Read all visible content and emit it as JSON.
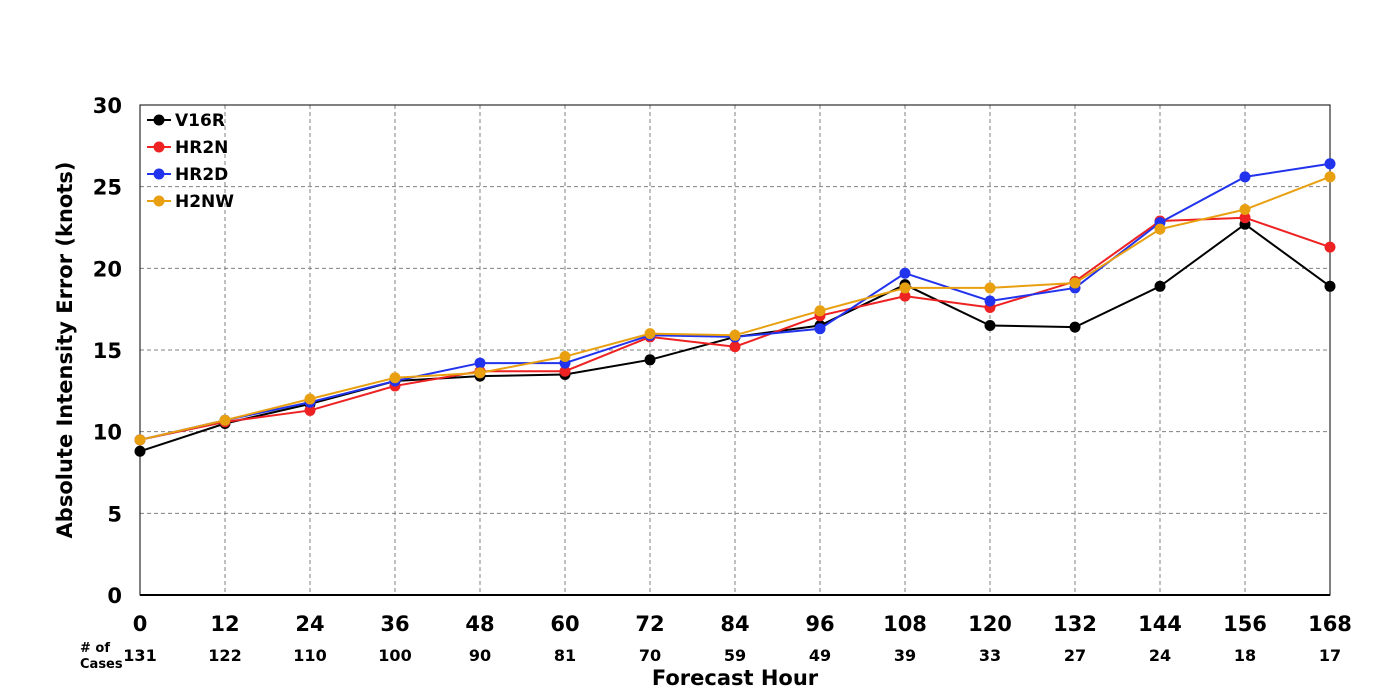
{
  "chart_data": {
    "type": "line",
    "title": "",
    "xlabel": "Forecast Hour",
    "ylabel": "Absolute Intensity Error (knots)",
    "x": [
      0,
      12,
      24,
      36,
      48,
      60,
      72,
      84,
      96,
      108,
      120,
      132,
      144,
      156,
      168
    ],
    "xlim": [
      0,
      168
    ],
    "ylim": [
      0,
      30
    ],
    "yticks": [
      0,
      5,
      10,
      15,
      20,
      25,
      30
    ],
    "grid": true,
    "legend_position": "top-left",
    "cases_label_line1": "# of",
    "cases_label_line2": "Cases",
    "cases": [
      131,
      122,
      110,
      100,
      90,
      81,
      70,
      59,
      49,
      39,
      33,
      27,
      24,
      18,
      17
    ],
    "series": [
      {
        "name": "V16R",
        "color": "#000000",
        "values": [
          8.8,
          10.5,
          11.7,
          13.1,
          13.4,
          13.5,
          14.4,
          15.8,
          16.5,
          19.0,
          16.5,
          16.4,
          18.9,
          22.7,
          18.9
        ]
      },
      {
        "name": "HR2N",
        "color": "#ee2222",
        "values": [
          9.5,
          10.6,
          11.3,
          12.8,
          13.7,
          13.7,
          15.8,
          15.2,
          17.1,
          18.3,
          17.6,
          19.2,
          22.9,
          23.1,
          21.3
        ]
      },
      {
        "name": "HR2D",
        "color": "#2233ee",
        "values": [
          9.5,
          10.7,
          11.8,
          13.1,
          14.2,
          14.2,
          15.9,
          15.8,
          16.3,
          19.7,
          18.0,
          18.8,
          22.8,
          25.6,
          26.4
        ]
      },
      {
        "name": "H2NW",
        "color": "#e8a010",
        "values": [
          9.5,
          10.7,
          12.0,
          13.3,
          13.6,
          14.6,
          16.0,
          15.9,
          17.4,
          18.8,
          18.8,
          19.1,
          22.4,
          23.6,
          25.6
        ]
      }
    ]
  }
}
